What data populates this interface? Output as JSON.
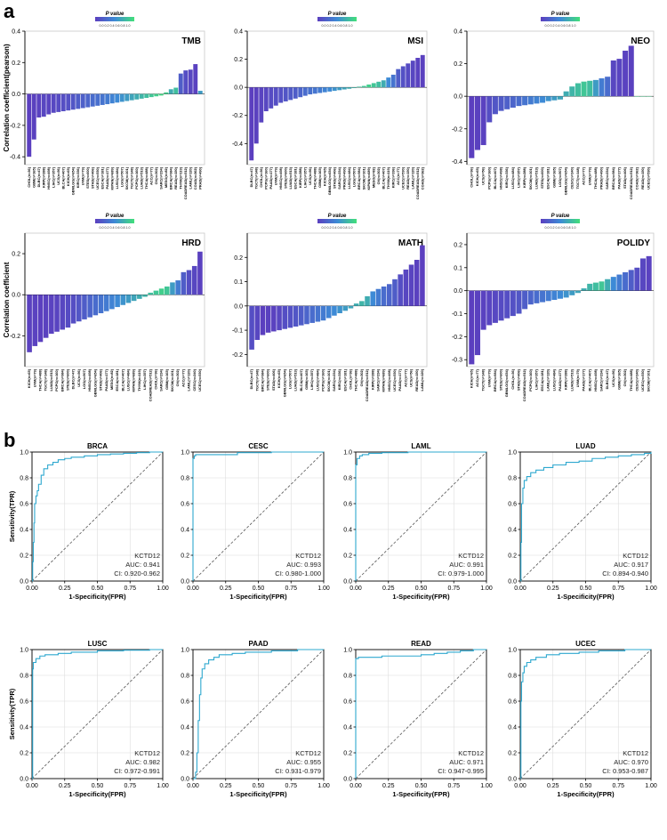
{
  "panel_labels": [
    "a",
    "b"
  ],
  "colors": {
    "low_p": "#5b3fbf",
    "mid_p": "#3d8ad6",
    "high_p": "#42e07a",
    "roc": "#2ea8cf",
    "diag": "#555555"
  },
  "legend": {
    "title": "P value",
    "ticks": "0.0 0.2 0.4 0.6 0.8 1.0"
  },
  "chart_data": [
    {
      "type": "bar",
      "panel": "a",
      "title": "TMB",
      "ylabel": "Correlation coefficient(pearson)",
      "ylim": [
        -0.45,
        0.4
      ],
      "yticks": [
        -0.4,
        -0.2,
        0.0,
        0.2,
        0.4
      ],
      "categories": [
        "CHOL(n=36)",
        "GBM(n=165)",
        "DLBC(n=47)",
        "KIRP(n=288)",
        "HNSC(n=498)",
        "LIHC(n=357)",
        "UCS(n=56)",
        "BLCA(n=407)",
        "KICH(n=65)",
        "GBMLGG(n=654)",
        "KIRC(n=336)",
        "UVM(n=79)",
        "STES(n=600)",
        "STAD(n=406)",
        "UCEC(n=530)",
        "ESCA(n=181)",
        "PAAD(n=177)",
        "KIPAN(n=689)",
        "LUSC(n=484)",
        "LGG(n=507)",
        "SKCM(n=101)",
        "TGCT(n=148)",
        "PCPG(n=160)",
        "LUAD(n=513)",
        "THCA(n=488)",
        "ACC(n=77)",
        "OV(n=302)",
        "SARC(n=234)",
        "MESO(n=82)",
        "BRCA(n=984)",
        "READ(n=150)",
        "THYM(n=119)",
        "COADREAD(n=512)",
        "LAML(n=120)",
        "COAD(n=362)",
        "PRAD(n=490)"
      ],
      "values": [
        -0.4,
        -0.29,
        -0.15,
        -0.145,
        -0.13,
        -0.12,
        -0.115,
        -0.11,
        -0.105,
        -0.1,
        -0.095,
        -0.09,
        -0.085,
        -0.08,
        -0.075,
        -0.07,
        -0.065,
        -0.06,
        -0.055,
        -0.05,
        -0.045,
        -0.04,
        -0.035,
        -0.03,
        -0.025,
        -0.02,
        -0.015,
        -0.01,
        0.01,
        0.03,
        0.04,
        0.13,
        0.15,
        0.155,
        0.19,
        0.02
      ],
      "pvalues": [
        0,
        0.01,
        0.02,
        0.05,
        0.03,
        0.06,
        0.08,
        0.1,
        0.12,
        0.15,
        0.2,
        0.22,
        0.25,
        0.3,
        0.32,
        0.35,
        0.4,
        0.45,
        0.5,
        0.55,
        0.6,
        0.65,
        0.7,
        0.75,
        0.8,
        0.85,
        0.9,
        0.95,
        0.9,
        0.7,
        0.8,
        0.2,
        0.1,
        0.05,
        0.02,
        0.6
      ]
    },
    {
      "type": "bar",
      "panel": "a",
      "title": "MSI",
      "ylabel": "",
      "ylim": [
        -0.55,
        0.4
      ],
      "yticks": [
        -0.4,
        -0.2,
        0.0,
        0.2,
        0.4
      ],
      "categories": [
        "DLBC(n=47)",
        "TGCT(n=148)",
        "CHOL(n=36)",
        "PCPG(n=160)",
        "PAAD(n=177)",
        "UVM(n=79)",
        "HNSC(n=498)",
        "STES(n=600)",
        "LUAD(n=513)",
        "ESCA(n=181)",
        "KIRP(n=288)",
        "LIHC(n=357)",
        "UCS(n=56)",
        "THCA(n=488)",
        "GBM(n=165)",
        "KICH(n=65)",
        "GBMLGG(n=654)",
        "STAD(n=406)",
        "SARC(n=234)",
        "PRAD(n=490)",
        "LUSC(n=484)",
        "LGG(n=507)",
        "BRCA(n=984)",
        "SKCM(n=101)",
        "KIPAN(n=689)",
        "MESO(n=82)",
        "OV(n=302)",
        "BLCA(n=407)",
        "THYM(n=119)",
        "KIRC(n=336)",
        "ACC(n=77)",
        "UCEC(n=530)",
        "READ(n=150)",
        "LAML(n=120)",
        "COADREAD(n=512)",
        "COAD(n=362)"
      ],
      "values": [
        -0.52,
        -0.4,
        -0.25,
        -0.17,
        -0.15,
        -0.13,
        -0.11,
        -0.1,
        -0.09,
        -0.08,
        -0.07,
        -0.06,
        -0.05,
        -0.045,
        -0.04,
        -0.035,
        -0.03,
        -0.025,
        -0.02,
        -0.015,
        -0.01,
        -0.005,
        0.005,
        0.01,
        0.02,
        0.03,
        0.04,
        0.05,
        0.07,
        0.09,
        0.13,
        0.15,
        0.17,
        0.19,
        0.21,
        0.23
      ],
      "pvalues": [
        0,
        0.01,
        0.03,
        0.05,
        0.08,
        0.1,
        0.12,
        0.15,
        0.18,
        0.2,
        0.25,
        0.3,
        0.33,
        0.36,
        0.4,
        0.45,
        0.5,
        0.55,
        0.6,
        0.65,
        0.7,
        0.75,
        0.8,
        0.85,
        0.9,
        0.85,
        0.8,
        0.7,
        0.5,
        0.35,
        0.2,
        0.12,
        0.08,
        0.05,
        0.02,
        0.01
      ]
    },
    {
      "type": "bar",
      "panel": "a",
      "title": "NEO",
      "ylabel": "",
      "ylim": [
        -0.42,
        0.4
      ],
      "yticks": [
        -0.4,
        -0.2,
        0.0,
        0.2,
        0.4
      ],
      "categories": [
        "CHOL(n=36)",
        "KICH(n=65)",
        "UCS(n=56)",
        "PCPG(n=160)",
        "BLCA(n=407)",
        "HNSC(n=498)",
        "KIRC(n=336)",
        "LUSC(n=484)",
        "LIHC(n=357)",
        "KIRP(n=288)",
        "SKCM(n=101)",
        "LUAD(n=513)",
        "STES(n=600)",
        "ESCA(n=181)",
        "GBM(n=165)",
        "LGG(n=507)",
        "GBMLGG(n=654)",
        "CESC(n=240)",
        "TGCT(n=148)",
        "ACC(n=77)",
        "UVM(n=79)",
        "THCA(n=488)",
        "PRAD(n=490)",
        "SARC(n=234)",
        "BRCA(n=984)",
        "PAAD(n=177)",
        "STAD(n=406)",
        "COADREAD(n=512)",
        "COAD(n=362)",
        "READ(n=150)",
        "UCEC(n=530)"
      ],
      "values": [
        -0.38,
        -0.33,
        -0.3,
        -0.16,
        -0.11,
        -0.09,
        -0.08,
        -0.07,
        -0.06,
        -0.055,
        -0.05,
        -0.045,
        -0.04,
        -0.03,
        -0.025,
        -0.02,
        0.03,
        0.06,
        0.08,
        0.09,
        0.095,
        0.1,
        0.11,
        0.12,
        0.22,
        0.23,
        0.28,
        0.31,
        0.0,
        0.0,
        0.0
      ],
      "pvalues": [
        0,
        0.01,
        0.02,
        0.1,
        0.15,
        0.18,
        0.22,
        0.25,
        0.3,
        0.35,
        0.4,
        0.45,
        0.5,
        0.55,
        0.6,
        0.65,
        0.7,
        0.75,
        0.8,
        0.85,
        0.8,
        0.6,
        0.4,
        0.3,
        0.05,
        0.04,
        0.02,
        0.01,
        0.9,
        0.9,
        0.9
      ]
    },
    {
      "type": "bar",
      "panel": "a",
      "title": "HRD",
      "ylabel": "Correlation coefficient",
      "ylim": [
        -0.35,
        0.3
      ],
      "yticks": [
        -0.2,
        0.0,
        0.2
      ],
      "categories": [
        "KICH(n=65)",
        "UVM(n=79)",
        "THCA(n=488)",
        "TGCT(n=148)",
        "LUAD(n=513)",
        "PCPG(n=160)",
        "BRCA(n=984)",
        "STES(n=600)",
        "DLBC(n=47)",
        "UCS(n=56)",
        "LGG(n=507)",
        "HNSC(n=498)",
        "GBMLGG(n=654)",
        "STAD(n=406)",
        "PAAD(n=177)",
        "MESO(n=82)",
        "ESCA(n=181)",
        "BLCA(n=407)",
        "LUSC(n=484)",
        "KIPAN(n=689)",
        "THYM(n=119)",
        "LIHC(n=357)",
        "COADREAD(n=512)",
        "CHOL(n=36)",
        "SARC(n=234)",
        "GBM(n=165)",
        "SKCM(n=101)",
        "OV(n=302)",
        "ACC(n=77)",
        "LAML(n=120)",
        "CESC(n=240)",
        "UCEC(n=530)"
      ],
      "values": [
        -0.28,
        -0.25,
        -0.23,
        -0.21,
        -0.19,
        -0.18,
        -0.17,
        -0.16,
        -0.14,
        -0.13,
        -0.12,
        -0.11,
        -0.1,
        -0.09,
        -0.08,
        -0.07,
        -0.06,
        -0.05,
        -0.04,
        -0.03,
        -0.02,
        -0.01,
        0.01,
        0.02,
        0.03,
        0.04,
        0.06,
        0.07,
        0.11,
        0.12,
        0.14,
        0.21
      ],
      "pvalues": [
        0.01,
        0.02,
        0,
        0.01,
        0.02,
        0.03,
        0.05,
        0.08,
        0.1,
        0.15,
        0.2,
        0.25,
        0.3,
        0.35,
        0.4,
        0.45,
        0.5,
        0.55,
        0.6,
        0.65,
        0.7,
        0.75,
        0.8,
        0.85,
        0.9,
        0.85,
        0.6,
        0.4,
        0.2,
        0.1,
        0.05,
        0.01
      ]
    },
    {
      "type": "bar",
      "panel": "a",
      "title": "MATH",
      "ylabel": "",
      "ylim": [
        -0.25,
        0.3
      ],
      "yticks": [
        -0.2,
        -0.1,
        0.0,
        0.1,
        0.2
      ],
      "categories": [
        "DLBC(n=47)",
        "TGCT(n=148)",
        "BRCA(n=984)",
        "STES(n=600)",
        "STAD(n=406)",
        "KICH(n=65)",
        "GBMLGG(n=654)",
        "LGG(n=507)",
        "LUAD(n=513)",
        "BLCA(n=407)",
        "GBM(n=165)",
        "LIHC(n=357)",
        "LUSC(n=484)",
        "PCPG(n=160)",
        "SKCM(n=101)",
        "SARC(n=234)",
        "KIRC(n=336)",
        "ESCA(n=181)",
        "CHOL(n=36)",
        "THCA(n=488)",
        "OV(n=302)",
        "COADREAD(n=512)",
        "KIRP(n=288)",
        "SARC(n=234)",
        "KIPAN(n=689)",
        "HNSC(n=498)",
        "UCEC(n=530)",
        "PAAD(n=177)",
        "ACC(n=77)",
        "UCS(n=56)",
        "READ(n=150)",
        "LAML(n=120)"
      ],
      "values": [
        -0.18,
        -0.14,
        -0.12,
        -0.11,
        -0.105,
        -0.1,
        -0.095,
        -0.09,
        -0.085,
        -0.08,
        -0.075,
        -0.07,
        -0.065,
        -0.06,
        -0.05,
        -0.04,
        -0.03,
        -0.02,
        -0.01,
        0.01,
        0.02,
        0.04,
        0.06,
        0.07,
        0.08,
        0.09,
        0.11,
        0.13,
        0.15,
        0.17,
        0.19,
        0.25
      ],
      "pvalues": [
        0.1,
        0.05,
        0,
        0.01,
        0.02,
        0.05,
        0.1,
        0.12,
        0.15,
        0.2,
        0.25,
        0.3,
        0.35,
        0.4,
        0.45,
        0.5,
        0.55,
        0.6,
        0.65,
        0.7,
        0.75,
        0.7,
        0.5,
        0.4,
        0.3,
        0.25,
        0.2,
        0.1,
        0.05,
        0.03,
        0.01,
        0
      ]
    },
    {
      "type": "bar",
      "panel": "a",
      "title": "POLIDY",
      "ylabel": "",
      "ylim": [
        -0.33,
        0.25
      ],
      "yticks": [
        -0.3,
        -0.2,
        -0.1,
        0.0,
        0.1,
        0.2
      ],
      "categories": [
        "KICH(n=65)",
        "ACC(n=77)",
        "TGCT(n=148)",
        "UVM(n=79)",
        "BRCA(n=984)",
        "STES(n=600)",
        "GBMLGG(n=654)",
        "CHOL(n=36)",
        "STAD(n=406)",
        "COADREAD(n=512)",
        "PCPG(n=160)",
        "LIHC(n=357)",
        "ESCA(n=181)",
        "LAML(n=120)",
        "LUSC(n=484)",
        "PAAD(n=177)",
        "KIRP(n=288)",
        "LUAD(n=513)",
        "UVM(n=79)",
        "PAAD(n=177)",
        "BLCA(n=407)",
        "HNSC(n=498)",
        "SARC(n=234)",
        "DLBC(n=47)",
        "UCS(n=56)",
        "GBM(n=165)",
        "OV(n=302)",
        "THCA(n=488)",
        "CESC(n=240)",
        "UCEC(n=530)",
        "SKCM(n=101)"
      ],
      "values": [
        -0.32,
        -0.28,
        -0.17,
        -0.15,
        -0.14,
        -0.13,
        -0.12,
        -0.11,
        -0.1,
        -0.08,
        -0.06,
        -0.055,
        -0.05,
        -0.045,
        -0.04,
        -0.035,
        -0.03,
        -0.02,
        -0.01,
        0.01,
        0.03,
        0.035,
        0.04,
        0.05,
        0.06,
        0.07,
        0.08,
        0.09,
        0.1,
        0.14,
        0.15
      ],
      "pvalues": [
        0,
        0.01,
        0.02,
        0.04,
        0.06,
        0.08,
        0.1,
        0.12,
        0.15,
        0.2,
        0.25,
        0.3,
        0.35,
        0.4,
        0.45,
        0.5,
        0.55,
        0.6,
        0.65,
        0.7,
        0.75,
        0.8,
        0.85,
        0.7,
        0.5,
        0.4,
        0.3,
        0.2,
        0.1,
        0.05,
        0.02
      ]
    },
    {
      "type": "line",
      "panel": "b",
      "title": "BRCA",
      "xlabel": "1-Specificity(FPR)",
      "ylabel": "Sensitivity(TPR)",
      "xlim": [
        0,
        1
      ],
      "ylim": [
        0,
        1
      ],
      "xticks": [
        0,
        0.25,
        0.5,
        0.75,
        1
      ],
      "yticks": [
        0,
        0.2,
        0.4,
        0.6,
        0.8,
        1
      ],
      "legend_text": [
        "KCTD12",
        "AUC: 0.941",
        "CI: 0.920-0.962"
      ],
      "fpr": [
        0,
        0.005,
        0.01,
        0.015,
        0.02,
        0.03,
        0.04,
        0.05,
        0.07,
        0.09,
        0.12,
        0.16,
        0.2,
        0.25,
        0.3,
        0.4,
        0.5,
        0.6,
        0.7,
        0.8,
        0.9,
        1.0
      ],
      "tpr": [
        0,
        0.15,
        0.3,
        0.45,
        0.6,
        0.66,
        0.7,
        0.75,
        0.82,
        0.87,
        0.9,
        0.92,
        0.94,
        0.95,
        0.96,
        0.97,
        0.98,
        0.985,
        0.99,
        0.995,
        1.0,
        1.0
      ]
    },
    {
      "type": "line",
      "panel": "b",
      "title": "CESC",
      "xlabel": "1-Specificity(FPR)",
      "ylabel": "",
      "xlim": [
        0,
        1
      ],
      "ylim": [
        0,
        1
      ],
      "xticks": [
        0,
        0.25,
        0.5,
        0.75,
        1
      ],
      "yticks": [
        0,
        0.2,
        0.4,
        0.6,
        0.8,
        1
      ],
      "legend_text": [
        "KCTD12",
        "AUC: 0.993",
        "CI: 0.980-1.000"
      ],
      "fpr": [
        0,
        0,
        0.01,
        0.02,
        0.33,
        0.34,
        0.6,
        1.0
      ],
      "tpr": [
        0,
        0.95,
        0.97,
        0.98,
        0.98,
        0.995,
        1.0,
        1.0
      ]
    },
    {
      "type": "line",
      "panel": "b",
      "title": "LAML",
      "xlabel": "1-Specificity(FPR)",
      "ylabel": "",
      "xlim": [
        0,
        1
      ],
      "ylim": [
        0,
        1
      ],
      "xticks": [
        0,
        0.25,
        0.5,
        0.75,
        1
      ],
      "yticks": [
        0,
        0.2,
        0.4,
        0.6,
        0.8,
        1
      ],
      "legend_text": [
        "KCTD12",
        "AUC: 0.991",
        "CI: 0.979-1.000"
      ],
      "fpr": [
        0,
        0,
        0.01,
        0.03,
        0.05,
        0.1,
        0.2,
        0.4,
        1.0
      ],
      "tpr": [
        0,
        0.9,
        0.95,
        0.97,
        0.98,
        0.99,
        0.995,
        1.0,
        1.0
      ]
    },
    {
      "type": "line",
      "panel": "b",
      "title": "LUAD",
      "xlabel": "1-Specificity(FPR)",
      "ylabel": "",
      "xlim": [
        0,
        1
      ],
      "ylim": [
        0,
        1
      ],
      "xticks": [
        0,
        0.25,
        0.5,
        0.75,
        1
      ],
      "yticks": [
        0,
        0.2,
        0.4,
        0.6,
        0.8,
        1
      ],
      "legend_text": [
        "KCTD12",
        "AUC: 0.917",
        "CI: 0.894-0.940"
      ],
      "fpr": [
        0,
        0.005,
        0.01,
        0.02,
        0.03,
        0.05,
        0.08,
        0.12,
        0.18,
        0.25,
        0.35,
        0.45,
        0.55,
        0.65,
        0.75,
        0.85,
        0.95,
        1.0
      ],
      "tpr": [
        0,
        0.3,
        0.6,
        0.72,
        0.78,
        0.81,
        0.84,
        0.86,
        0.88,
        0.9,
        0.92,
        0.93,
        0.95,
        0.96,
        0.97,
        0.98,
        0.99,
        1.0
      ]
    },
    {
      "type": "line",
      "panel": "b",
      "title": "LUSC",
      "xlabel": "1-Specificity(FPR)",
      "ylabel": "Sensitivity(TPR)",
      "xlim": [
        0,
        1
      ],
      "ylim": [
        0,
        1
      ],
      "xticks": [
        0,
        0.25,
        0.5,
        0.75,
        1
      ],
      "yticks": [
        0,
        0.2,
        0.4,
        0.6,
        0.8,
        1
      ],
      "legend_text": [
        "KCTD12",
        "AUC: 0.982",
        "CI: 0.972-0.991"
      ],
      "fpr": [
        0,
        0.005,
        0.01,
        0.03,
        0.06,
        0.1,
        0.2,
        0.3,
        0.5,
        0.7,
        0.9,
        1.0
      ],
      "tpr": [
        0,
        0.85,
        0.9,
        0.93,
        0.95,
        0.96,
        0.97,
        0.98,
        0.99,
        0.995,
        1.0,
        1.0
      ]
    },
    {
      "type": "line",
      "panel": "b",
      "title": "PAAD",
      "xlabel": "1-Specificity(FPR)",
      "ylabel": "",
      "xlim": [
        0,
        1
      ],
      "ylim": [
        0,
        1
      ],
      "xticks": [
        0,
        0.25,
        0.5,
        0.75,
        1
      ],
      "yticks": [
        0,
        0.2,
        0.4,
        0.6,
        0.8,
        1
      ],
      "legend_text": [
        "KCTD12",
        "AUC: 0.955",
        "CI: 0.931-0.979"
      ],
      "fpr": [
        0,
        0.02,
        0.03,
        0.04,
        0.05,
        0.06,
        0.07,
        0.09,
        0.12,
        0.16,
        0.2,
        0.3,
        0.4,
        0.6,
        0.8,
        1.0
      ],
      "tpr": [
        0,
        0.05,
        0.2,
        0.45,
        0.65,
        0.78,
        0.85,
        0.89,
        0.92,
        0.94,
        0.96,
        0.97,
        0.98,
        0.99,
        1.0,
        1.0
      ]
    },
    {
      "type": "line",
      "panel": "b",
      "title": "READ",
      "xlabel": "1-Specificity(FPR)",
      "ylabel": "",
      "xlim": [
        0,
        1
      ],
      "ylim": [
        0,
        1
      ],
      "xticks": [
        0,
        0.25,
        0.5,
        0.75,
        1
      ],
      "yticks": [
        0,
        0.2,
        0.4,
        0.6,
        0.8,
        1
      ],
      "legend_text": [
        "KCTD12",
        "AUC: 0.971",
        "CI: 0.947-0.995"
      ],
      "fpr": [
        0,
        0,
        0.02,
        0.1,
        0.2,
        0.3,
        0.5,
        0.6,
        0.7,
        0.8,
        0.9,
        1.0
      ],
      "tpr": [
        0,
        0.93,
        0.94,
        0.94,
        0.95,
        0.95,
        0.96,
        0.97,
        0.98,
        0.99,
        1.0,
        1.0
      ]
    },
    {
      "type": "line",
      "panel": "b",
      "title": "UCEC",
      "xlabel": "1-Specificity(FPR)",
      "ylabel": "",
      "xlim": [
        0,
        1
      ],
      "ylim": [
        0,
        1
      ],
      "xticks": [
        0,
        0.25,
        0.5,
        0.75,
        1
      ],
      "yticks": [
        0,
        0.2,
        0.4,
        0.6,
        0.8,
        1
      ],
      "legend_text": [
        "KCTD12",
        "AUC: 0.970",
        "CI: 0.953-0.987"
      ],
      "fpr": [
        0,
        0.005,
        0.01,
        0.02,
        0.03,
        0.05,
        0.08,
        0.12,
        0.2,
        0.3,
        0.45,
        0.6,
        0.8,
        1.0
      ],
      "tpr": [
        0,
        0.6,
        0.75,
        0.82,
        0.87,
        0.9,
        0.92,
        0.94,
        0.96,
        0.97,
        0.98,
        0.99,
        1.0,
        1.0
      ]
    }
  ]
}
